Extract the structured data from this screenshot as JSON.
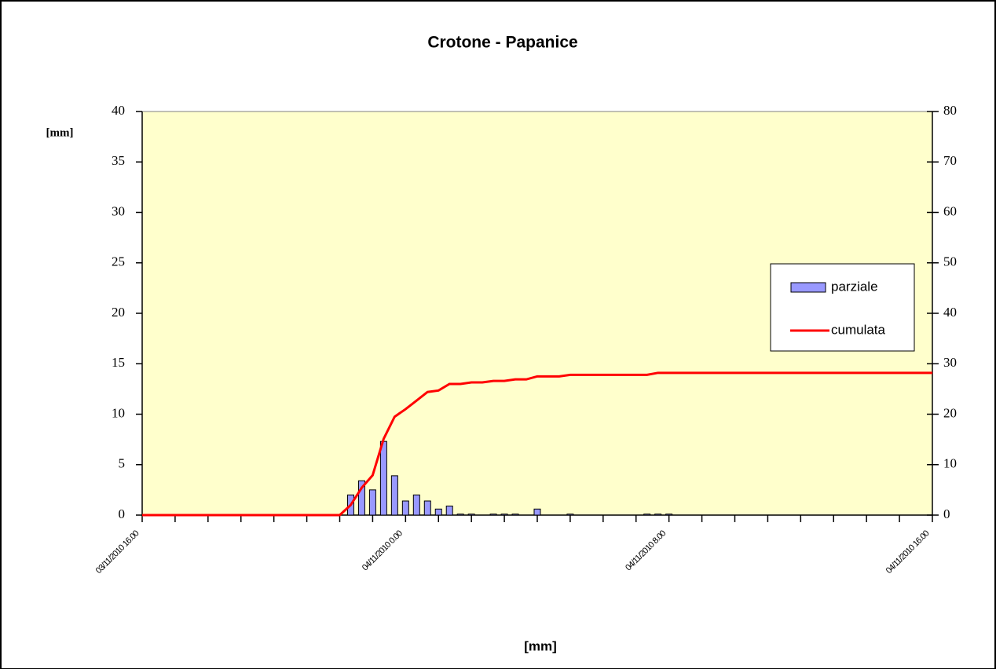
{
  "chart_data": {
    "type": "bar_line",
    "title": "Crotone - Papanice",
    "y_label": "[mm]",
    "x_label": "[mm]",
    "categories": [
      "03/11/2010 16.00",
      null,
      null,
      null,
      null,
      null,
      null,
      null,
      null,
      null,
      null,
      null,
      null,
      null,
      null,
      null,
      null,
      null,
      null,
      null,
      null,
      null,
      null,
      null,
      "04/11/2010 0.00",
      null,
      null,
      null,
      null,
      null,
      null,
      null,
      null,
      null,
      null,
      null,
      null,
      null,
      null,
      null,
      null,
      null,
      null,
      null,
      null,
      null,
      null,
      null,
      "04/11/2010 8.00",
      null,
      null,
      null,
      null,
      null,
      null,
      null,
      null,
      null,
      null,
      null,
      null,
      null,
      null,
      null,
      null,
      null,
      null,
      null,
      null,
      null,
      null,
      null,
      "04/11/2010 16.00"
    ],
    "series": [
      {
        "name": "parziale",
        "type": "bar",
        "color": "#9999ff",
        "values": [
          0,
          0,
          0,
          0,
          0,
          0,
          0,
          0,
          0,
          0,
          0,
          0,
          0,
          0,
          0,
          0,
          0,
          0,
          0,
          2.0,
          3.4,
          2.5,
          7.3,
          3.9,
          1.4,
          2.0,
          1.4,
          0.6,
          0.9,
          0.1,
          0.1,
          0,
          0.1,
          0.1,
          0.1,
          0,
          0.6,
          0,
          0,
          0.1,
          0,
          0,
          0,
          0,
          0,
          0,
          0.1,
          0.1,
          0.1,
          0,
          0,
          0,
          0,
          0,
          0,
          0,
          0,
          0,
          0,
          0,
          0,
          0,
          0,
          0,
          0,
          0,
          0,
          0,
          0,
          0,
          0,
          0,
          0
        ]
      },
      {
        "name": "cumulata",
        "type": "line",
        "color": "#ff0000",
        "axis": "y2",
        "values": [
          0,
          0,
          0,
          0,
          0,
          0,
          0,
          0,
          0,
          0,
          0,
          0,
          0,
          0,
          0,
          0,
          0,
          0,
          0,
          2.0,
          5.4,
          7.9,
          15.1,
          19.5,
          21,
          22.7,
          24.4,
          24.7,
          26,
          26,
          26.3,
          26.3,
          26.6,
          26.6,
          26.9,
          26.9,
          27.5,
          27.5,
          27.5,
          27.8,
          27.8,
          27.8,
          27.8,
          27.8,
          27.8,
          27.8,
          27.8,
          28.2,
          28.2,
          28.2,
          28.2,
          28.2,
          28.2,
          28.2,
          28.2,
          28.2,
          28.2,
          28.2,
          28.2,
          28.2,
          28.2,
          28.2,
          28.2,
          28.2,
          28.2,
          28.2,
          28.2,
          28.2,
          28.2,
          28.2,
          28.2,
          28.2,
          28.2
        ]
      }
    ],
    "ylim": [
      0,
      40
    ],
    "yticks": [
      0,
      5,
      10,
      15,
      20,
      25,
      30,
      35,
      40
    ],
    "y2lim": [
      0,
      80
    ],
    "y2ticks": [
      0,
      10,
      20,
      30,
      40,
      50,
      60,
      70,
      80
    ],
    "legend": "right",
    "background": "#ffffcc"
  }
}
